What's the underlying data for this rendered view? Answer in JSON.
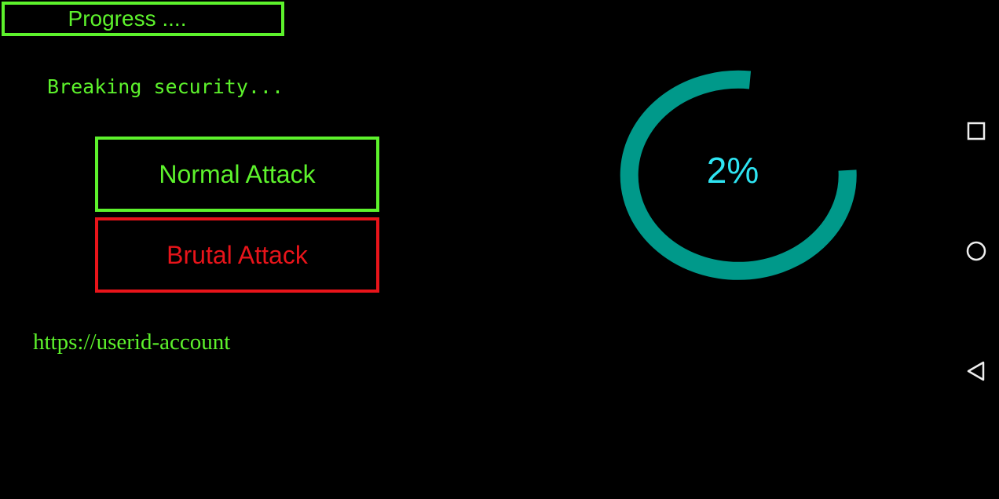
{
  "header": {
    "title": "Progress ...."
  },
  "status_text": "Breaking security...",
  "buttons": {
    "normal_attack": "Normal Attack",
    "brutal_attack": "Brutal Attack"
  },
  "link_text": "https://userid-account",
  "progress": {
    "value_label": "2%",
    "value_percent": 2
  },
  "colors": {
    "green": "#5df22c",
    "red": "#e8141a",
    "teal": "#00998a",
    "cyan": "#2ee4f2"
  },
  "nav_bar": {
    "icons": [
      "recents-icon",
      "home-icon",
      "back-icon"
    ]
  }
}
